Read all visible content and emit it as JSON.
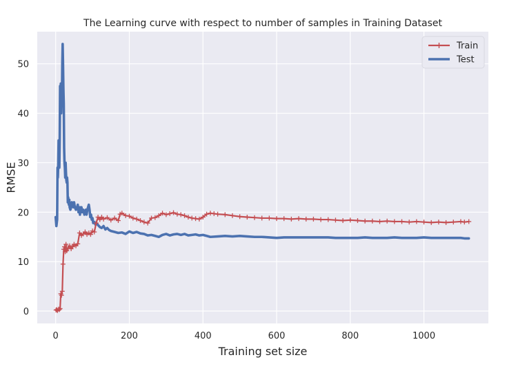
{
  "chart_data": {
    "type": "line",
    "title": "The Learning curve with respect to number of samples in Training Dataset",
    "xlabel": "Training set size",
    "ylabel": "RMSE",
    "xlim": [
      -50,
      1175
    ],
    "ylim": [
      -2.5,
      56.5
    ],
    "xticks": [
      0,
      200,
      400,
      600,
      800,
      1000
    ],
    "yticks": [
      0,
      10,
      20,
      30,
      40,
      50
    ],
    "grid": true,
    "legend_position": "top-right",
    "colors": {
      "train": "#c44e52",
      "test": "#4c72b0",
      "plot_bg": "#eaeaf2",
      "grid": "#ffffff"
    },
    "series": [
      {
        "name": "Train",
        "marker": "+",
        "values": [
          [
            1,
            0.2
          ],
          [
            3,
            0.3
          ],
          [
            5,
            0.1
          ],
          [
            8,
            0.4
          ],
          [
            10,
            0.3
          ],
          [
            12,
            0.5
          ],
          [
            14,
            3.5
          ],
          [
            16,
            3.2
          ],
          [
            18,
            4.0
          ],
          [
            20,
            9.5
          ],
          [
            22,
            12.5
          ],
          [
            24,
            13.0
          ],
          [
            26,
            12.0
          ],
          [
            28,
            13.5
          ],
          [
            30,
            12.2
          ],
          [
            34,
            12.8
          ],
          [
            38,
            13.2
          ],
          [
            42,
            12.6
          ],
          [
            46,
            13.0
          ],
          [
            50,
            13.5
          ],
          [
            55,
            13.2
          ],
          [
            60,
            13.6
          ],
          [
            65,
            15.8
          ],
          [
            70,
            15.3
          ],
          [
            75,
            15.6
          ],
          [
            80,
            16.0
          ],
          [
            85,
            15.5
          ],
          [
            90,
            15.8
          ],
          [
            95,
            15.5
          ],
          [
            100,
            16.2
          ],
          [
            105,
            16.0
          ],
          [
            110,
            17.8
          ],
          [
            115,
            19.0
          ],
          [
            120,
            18.5
          ],
          [
            125,
            19.0
          ],
          [
            130,
            18.6
          ],
          [
            140,
            18.9
          ],
          [
            150,
            18.4
          ],
          [
            160,
            18.8
          ],
          [
            170,
            18.3
          ],
          [
            175,
            19.6
          ],
          [
            180,
            19.8
          ],
          [
            190,
            19.3
          ],
          [
            200,
            19.2
          ],
          [
            210,
            18.8
          ],
          [
            220,
            18.6
          ],
          [
            230,
            18.3
          ],
          [
            240,
            18.0
          ],
          [
            250,
            17.8
          ],
          [
            260,
            18.8
          ],
          [
            270,
            18.9
          ],
          [
            280,
            19.3
          ],
          [
            290,
            19.8
          ],
          [
            300,
            19.5
          ],
          [
            310,
            19.7
          ],
          [
            320,
            19.9
          ],
          [
            330,
            19.6
          ],
          [
            340,
            19.5
          ],
          [
            350,
            19.3
          ],
          [
            360,
            19.0
          ],
          [
            370,
            18.8
          ],
          [
            380,
            18.7
          ],
          [
            390,
            18.6
          ],
          [
            400,
            19.0
          ],
          [
            410,
            19.6
          ],
          [
            420,
            19.8
          ],
          [
            430,
            19.7
          ],
          [
            440,
            19.6
          ],
          [
            460,
            19.5
          ],
          [
            480,
            19.3
          ],
          [
            500,
            19.1
          ],
          [
            520,
            19.0
          ],
          [
            540,
            18.9
          ],
          [
            560,
            18.8
          ],
          [
            580,
            18.8
          ],
          [
            600,
            18.7
          ],
          [
            620,
            18.7
          ],
          [
            640,
            18.6
          ],
          [
            660,
            18.7
          ],
          [
            680,
            18.6
          ],
          [
            700,
            18.6
          ],
          [
            720,
            18.5
          ],
          [
            740,
            18.5
          ],
          [
            760,
            18.4
          ],
          [
            780,
            18.3
          ],
          [
            800,
            18.4
          ],
          [
            820,
            18.3
          ],
          [
            840,
            18.2
          ],
          [
            860,
            18.2
          ],
          [
            880,
            18.1
          ],
          [
            900,
            18.2
          ],
          [
            920,
            18.1
          ],
          [
            940,
            18.1
          ],
          [
            960,
            18.0
          ],
          [
            980,
            18.1
          ],
          [
            1000,
            18.0
          ],
          [
            1020,
            17.9
          ],
          [
            1040,
            18.0
          ],
          [
            1060,
            17.9
          ],
          [
            1080,
            18.0
          ],
          [
            1100,
            18.1
          ],
          [
            1110,
            18.0
          ],
          [
            1122,
            18.1
          ]
        ]
      },
      {
        "name": "Test",
        "values": [
          [
            0,
            19.0
          ],
          [
            2,
            17.2
          ],
          [
            4,
            18.5
          ],
          [
            5,
            29.0
          ],
          [
            6,
            27.0
          ],
          [
            7,
            29.5
          ],
          [
            8,
            34.5
          ],
          [
            9,
            30.0
          ],
          [
            10,
            29.0
          ],
          [
            11,
            35.0
          ],
          [
            12,
            45.5
          ],
          [
            13,
            42.0
          ],
          [
            14,
            46.0
          ],
          [
            15,
            40.0
          ],
          [
            16,
            44.0
          ],
          [
            17,
            43.0
          ],
          [
            18,
            50.0
          ],
          [
            19,
            54.0
          ],
          [
            20,
            50.0
          ],
          [
            21,
            45.0
          ],
          [
            22,
            42.0
          ],
          [
            23,
            33.0
          ],
          [
            24,
            30.0
          ],
          [
            25,
            29.0
          ],
          [
            26,
            27.0
          ],
          [
            27,
            30.0
          ],
          [
            28,
            28.0
          ],
          [
            29,
            26.5
          ],
          [
            30,
            26.0
          ],
          [
            31,
            27.0
          ],
          [
            32,
            26.0
          ],
          [
            33,
            22.0
          ],
          [
            34,
            23.0
          ],
          [
            35,
            22.0
          ],
          [
            36,
            21.5
          ],
          [
            37,
            22.5
          ],
          [
            38,
            21.0
          ],
          [
            40,
            20.5
          ],
          [
            42,
            21.0
          ],
          [
            44,
            22.0
          ],
          [
            46,
            21.5
          ],
          [
            48,
            21.0
          ],
          [
            50,
            22.0
          ],
          [
            52,
            21.0
          ],
          [
            55,
            20.5
          ],
          [
            58,
            21.0
          ],
          [
            60,
            21.5
          ],
          [
            62,
            20.0
          ],
          [
            64,
            21.0
          ],
          [
            66,
            19.5
          ],
          [
            68,
            21.0
          ],
          [
            70,
            21.0
          ],
          [
            72,
            20.0
          ],
          [
            75,
            20.5
          ],
          [
            78,
            19.5
          ],
          [
            80,
            20.0
          ],
          [
            82,
            20.5
          ],
          [
            84,
            19.5
          ],
          [
            86,
            20.5
          ],
          [
            88,
            21.0
          ],
          [
            90,
            21.5
          ],
          [
            92,
            20.5
          ],
          [
            94,
            19.0
          ],
          [
            96,
            19.5
          ],
          [
            98,
            18.5
          ],
          [
            100,
            18.8
          ],
          [
            102,
            17.8
          ],
          [
            105,
            18.0
          ],
          [
            108,
            17.5
          ],
          [
            110,
            17.8
          ],
          [
            115,
            17.4
          ],
          [
            120,
            17.0
          ],
          [
            125,
            16.8
          ],
          [
            130,
            17.2
          ],
          [
            135,
            16.5
          ],
          [
            140,
            16.8
          ],
          [
            145,
            16.4
          ],
          [
            150,
            16.2
          ],
          [
            160,
            16.0
          ],
          [
            170,
            15.8
          ],
          [
            180,
            15.9
          ],
          [
            190,
            15.6
          ],
          [
            200,
            16.1
          ],
          [
            210,
            15.8
          ],
          [
            220,
            16.0
          ],
          [
            230,
            15.7
          ],
          [
            240,
            15.6
          ],
          [
            250,
            15.3
          ],
          [
            260,
            15.4
          ],
          [
            270,
            15.2
          ],
          [
            280,
            15.0
          ],
          [
            290,
            15.4
          ],
          [
            300,
            15.6
          ],
          [
            310,
            15.3
          ],
          [
            320,
            15.5
          ],
          [
            330,
            15.6
          ],
          [
            340,
            15.4
          ],
          [
            350,
            15.6
          ],
          [
            360,
            15.3
          ],
          [
            370,
            15.4
          ],
          [
            380,
            15.5
          ],
          [
            390,
            15.3
          ],
          [
            400,
            15.4
          ],
          [
            410,
            15.2
          ],
          [
            420,
            15.0
          ],
          [
            440,
            15.1
          ],
          [
            460,
            15.2
          ],
          [
            480,
            15.1
          ],
          [
            500,
            15.2
          ],
          [
            520,
            15.1
          ],
          [
            540,
            15.0
          ],
          [
            560,
            15.0
          ],
          [
            580,
            14.9
          ],
          [
            600,
            14.8
          ],
          [
            620,
            14.9
          ],
          [
            640,
            14.9
          ],
          [
            660,
            14.9
          ],
          [
            680,
            14.9
          ],
          [
            700,
            14.9
          ],
          [
            720,
            14.9
          ],
          [
            740,
            14.9
          ],
          [
            760,
            14.8
          ],
          [
            780,
            14.8
          ],
          [
            800,
            14.8
          ],
          [
            820,
            14.8
          ],
          [
            840,
            14.9
          ],
          [
            860,
            14.8
          ],
          [
            880,
            14.8
          ],
          [
            900,
            14.8
          ],
          [
            920,
            14.9
          ],
          [
            940,
            14.8
          ],
          [
            960,
            14.8
          ],
          [
            980,
            14.8
          ],
          [
            1000,
            14.9
          ],
          [
            1020,
            14.8
          ],
          [
            1040,
            14.8
          ],
          [
            1060,
            14.8
          ],
          [
            1080,
            14.8
          ],
          [
            1100,
            14.8
          ],
          [
            1110,
            14.7
          ],
          [
            1122,
            14.7
          ]
        ]
      }
    ]
  }
}
